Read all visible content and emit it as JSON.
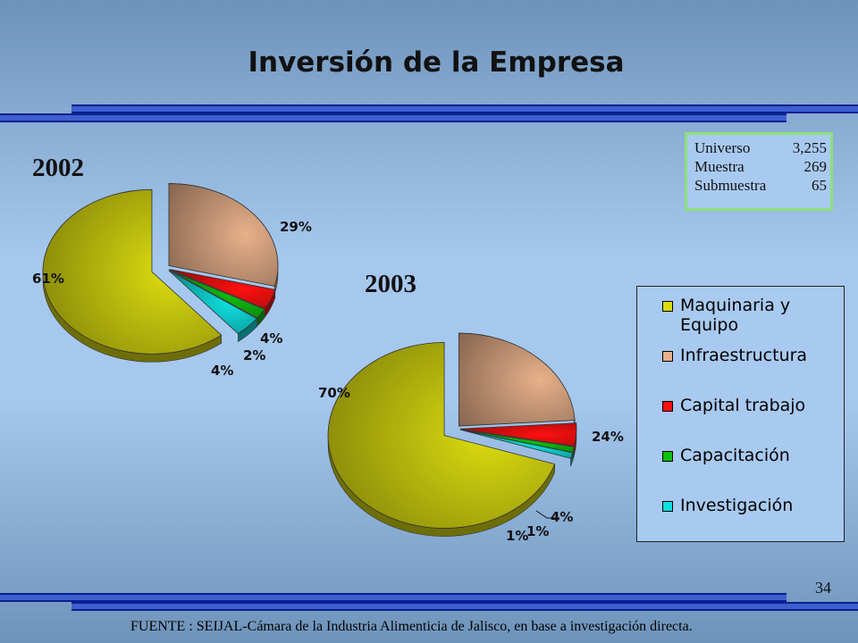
{
  "title": "Inversión de la Empresa",
  "info": [
    {
      "label": "Universo",
      "value": "3,255"
    },
    {
      "label": "Muestra",
      "value": "269"
    },
    {
      "label": "Submuestra",
      "value": "65"
    }
  ],
  "page_number": "34",
  "source": "FUENTE : SEIJAL-Cámara de la Industria Alimenticia de Jalisco,  en base a investigación directa.",
  "colors": {
    "maquinaria": "#dcdc10",
    "infraestructura": "#e8b08a",
    "capital": "#ff1010",
    "capacitacion": "#10c010",
    "investigacion": "#10e0e0"
  },
  "chart_data": [
    {
      "type": "pie",
      "title": "2002",
      "legend_placement": "right",
      "slices": [
        {
          "name": "Maquinaria y Equipo",
          "value": 61,
          "label": "61%"
        },
        {
          "name": "Infraestructura",
          "value": 29,
          "label": "29%"
        },
        {
          "name": "Capital trabajo",
          "value": 4,
          "label": "4%"
        },
        {
          "name": "Capacitación",
          "value": 2,
          "label": "2%"
        },
        {
          "name": "Investigación",
          "value": 4,
          "label": "4%"
        }
      ]
    },
    {
      "type": "pie",
      "title": "2003",
      "legend_placement": "right",
      "slices": [
        {
          "name": "Maquinaria y Equipo",
          "value": 70,
          "label": "70%"
        },
        {
          "name": "Infraestructura",
          "value": 24,
          "label": "24%"
        },
        {
          "name": "Capital trabajo",
          "value": 4,
          "label": "4%"
        },
        {
          "name": "Capacitación",
          "value": 1,
          "label": "1%"
        },
        {
          "name": "Investigación",
          "value": 1,
          "label": "1%"
        }
      ]
    }
  ],
  "legend": [
    {
      "label": "Maquinaria y Equipo",
      "color_key": "maquinaria"
    },
    {
      "label": "Infraestructura",
      "color_key": "infraestructura"
    },
    {
      "label": "Capital trabajo",
      "color_key": "capital"
    },
    {
      "label": "Capacitación",
      "color_key": "capacitacion"
    },
    {
      "label": "Investigación",
      "color_key": "investigacion"
    }
  ]
}
